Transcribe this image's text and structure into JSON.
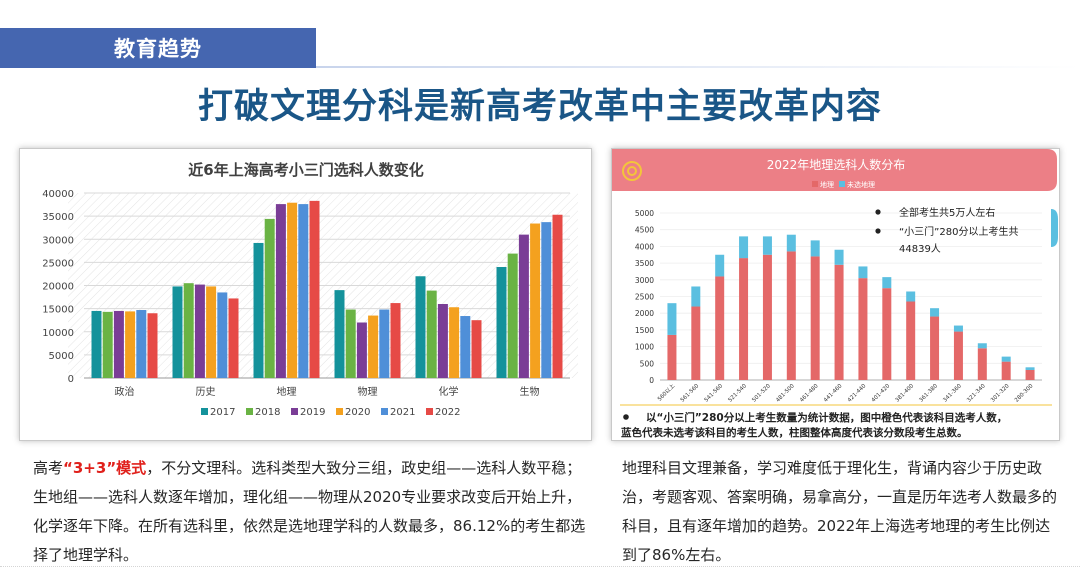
{
  "header": {
    "tag": "教育趋势",
    "title": "打破文理分科是新高考改革中主要改革内容"
  },
  "left_chart": {
    "title": "近6年上海高考小三门选科人数变化",
    "y_ticks": [
      "40000",
      "35000",
      "30000",
      "25000",
      "20000",
      "15000",
      "10000",
      "5000",
      "0"
    ],
    "legend_labels": [
      "2017",
      "2018",
      "2019",
      "2020",
      "2021",
      "2022"
    ]
  },
  "right_chart": {
    "title": "2022年地理选科人数分布",
    "legend_labels": [
      "地理",
      "未选地理"
    ],
    "y_ticks": [
      "5000",
      "4500",
      "4000",
      "3500",
      "3000",
      "2500",
      "2000",
      "1500",
      "1000",
      "500",
      "0"
    ],
    "note1": "全部考生共5万人左右",
    "note2a": "“小三门”280分以上考生共",
    "note2b": "44839人",
    "footnote1": "以“小三门”280分以上考生数量为统计数据，图中橙色代表该科目选考人数，",
    "footnote2": "蓝色代表未选考该科目的考生人数，柱图整体高度代表该分数段考生总数。"
  },
  "chart_data": [
    {
      "type": "bar",
      "title": "近6年上海高考小三门选科人数变化",
      "categories": [
        "政治",
        "历史",
        "地理",
        "物理",
        "化学",
        "生物"
      ],
      "ylim": [
        0,
        40000
      ],
      "grid": true,
      "legend_position": "bottom",
      "colors": [
        "#14929b",
        "#6ab344",
        "#7a3d96",
        "#f4a11f",
        "#4f8fd8",
        "#e64a46"
      ],
      "series": [
        {
          "name": "2017",
          "values": [
            14500,
            19800,
            29200,
            19000,
            22000,
            24000
          ]
        },
        {
          "name": "2018",
          "values": [
            14300,
            20500,
            34400,
            14800,
            18900,
            26900
          ]
        },
        {
          "name": "2019",
          "values": [
            14500,
            20200,
            37600,
            12000,
            16000,
            31000
          ]
        },
        {
          "name": "2020",
          "values": [
            14400,
            19800,
            37900,
            13500,
            15300,
            33400
          ]
        },
        {
          "name": "2021",
          "values": [
            14700,
            18500,
            37600,
            14800,
            13400,
            33700
          ]
        },
        {
          "name": "2022",
          "values": [
            14000,
            17200,
            38300,
            16200,
            12500,
            35300
          ]
        }
      ]
    },
    {
      "type": "bar",
      "title": "2022年地理选科人数分布",
      "categories": [
        "560以上",
        "561-560",
        "541-560",
        "521-540",
        "501-520",
        "481-500",
        "461-480",
        "441-460",
        "421-440",
        "401-420",
        "381-400",
        "361-380",
        "341-360",
        "321-340",
        "301-320",
        "280-300"
      ],
      "ylim": [
        0,
        5000
      ],
      "stacked": true,
      "legend_position": "top",
      "colors": [
        "#e46868",
        "#5bbfe0"
      ],
      "series": [
        {
          "name": "地理",
          "values": [
            1350,
            2200,
            3100,
            3650,
            3750,
            3850,
            3700,
            3450,
            3050,
            2750,
            2350,
            1900,
            1450,
            950,
            550,
            300
          ]
        },
        {
          "name": "未选地理",
          "values": [
            950,
            600,
            650,
            650,
            550,
            500,
            480,
            450,
            350,
            330,
            300,
            250,
            180,
            150,
            150,
            80
          ]
        }
      ]
    }
  ],
  "paragraphs": {
    "left_prefix": "高考",
    "left_highlight": "“3+3”模式",
    "left_rest": "，不分文理科。选科类型大致分三组，政史组——选科人数平稳；生地组——选科人数逐年增加，理化组——物理从2020专业要求改变后开始上升，化学逐年下降。在所有选科里，依然是选地理学科的人数最多，86.12%的考生都选择了地理学科。",
    "right": "地理科目文理兼备，学习难度低于理化生，背诵内容少于历史政治，考题客观、答案明确，易拿高分，一直是历年选考人数最多的科目，且有逐年增加的趋势。2022年上海选考地理的考生比例达到了86%左右。"
  }
}
